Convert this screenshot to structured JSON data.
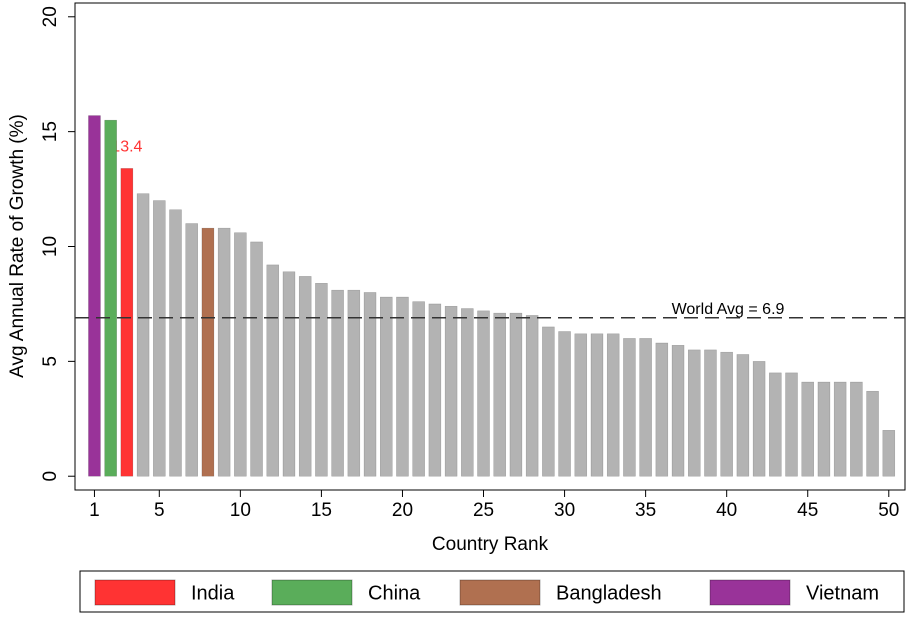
{
  "chart_data": {
    "type": "bar",
    "x_label": "Country Rank",
    "y_label": "Avg Annual Rate of Growth (%)",
    "x": [
      1,
      2,
      3,
      4,
      5,
      6,
      7,
      8,
      9,
      10,
      11,
      12,
      13,
      14,
      15,
      16,
      17,
      18,
      19,
      20,
      21,
      22,
      23,
      24,
      25,
      26,
      27,
      28,
      29,
      30,
      31,
      32,
      33,
      34,
      35,
      36,
      37,
      38,
      39,
      40,
      41,
      42,
      43,
      44,
      45,
      46,
      47,
      48,
      49,
      50
    ],
    "series": [
      {
        "name": "India",
        "color": "#ff3333",
        "show_value_labels": true,
        "values": [
          null,
          null,
          13.4,
          null,
          null,
          null,
          null,
          null,
          null,
          null,
          null,
          null,
          null,
          null,
          null,
          null,
          null,
          null,
          null,
          null,
          null,
          null,
          null,
          null,
          null,
          null,
          null,
          null,
          null,
          null,
          null,
          null,
          null,
          null,
          null,
          null,
          null,
          null,
          null,
          null,
          null,
          null,
          null,
          null,
          null,
          null,
          null,
          null,
          null,
          null
        ]
      },
      {
        "name": "China",
        "color": "#5aad5a",
        "values": [
          null,
          15.5,
          null,
          null,
          null,
          null,
          null,
          null,
          null,
          null,
          null,
          null,
          null,
          null,
          null,
          null,
          null,
          null,
          null,
          null,
          null,
          null,
          null,
          null,
          null,
          null,
          null,
          null,
          null,
          null,
          null,
          null,
          null,
          null,
          null,
          null,
          null,
          null,
          null,
          null,
          null,
          null,
          null,
          null,
          null,
          null,
          null,
          null,
          null,
          null
        ]
      },
      {
        "name": "Bangladesh",
        "color": "#b07050",
        "values": [
          null,
          null,
          null,
          null,
          null,
          null,
          null,
          10.8,
          null,
          null,
          null,
          null,
          null,
          null,
          null,
          null,
          null,
          null,
          null,
          null,
          null,
          null,
          null,
          null,
          null,
          null,
          null,
          null,
          null,
          null,
          null,
          null,
          null,
          null,
          null,
          null,
          null,
          null,
          null,
          null,
          null,
          null,
          null,
          null,
          null,
          null,
          null,
          null,
          null,
          null
        ]
      },
      {
        "name": "Vietnam",
        "color": "#993399",
        "values": [
          15.7,
          null,
          null,
          null,
          null,
          null,
          null,
          null,
          null,
          null,
          null,
          null,
          null,
          null,
          null,
          null,
          null,
          null,
          null,
          null,
          null,
          null,
          null,
          null,
          null,
          null,
          null,
          null,
          null,
          null,
          null,
          null,
          null,
          null,
          null,
          null,
          null,
          null,
          null,
          null,
          null,
          null,
          null,
          null,
          null,
          null,
          null,
          null,
          null,
          null
        ]
      },
      {
        "color": "#b3b3b3",
        "values": [
          null,
          null,
          null,
          12.3,
          12.0,
          11.6,
          11.0,
          null,
          10.8,
          10.6,
          10.2,
          9.2,
          8.9,
          8.7,
          8.4,
          8.1,
          8.1,
          8.0,
          7.8,
          7.8,
          7.6,
          7.5,
          7.4,
          7.3,
          7.2,
          7.1,
          7.1,
          7.0,
          6.5,
          6.3,
          6.2,
          6.2,
          6.2,
          6.0,
          6.0,
          5.8,
          5.7,
          5.5,
          5.5,
          5.4,
          5.3,
          5.0,
          4.5,
          4.5,
          4.1,
          4.1,
          4.1,
          4.1,
          3.7,
          2.0
        ]
      }
    ],
    "reference_line": {
      "value": 6.9,
      "label": "World Avg = 6.9"
    },
    "xlim": [
      -0.2,
      51
    ],
    "xticks": [
      1,
      5,
      10,
      15,
      20,
      25,
      30,
      35,
      40,
      45,
      50
    ],
    "ylim": [
      -0.6,
      20.6
    ],
    "yticks": [
      0,
      5,
      10,
      15,
      20
    ]
  }
}
